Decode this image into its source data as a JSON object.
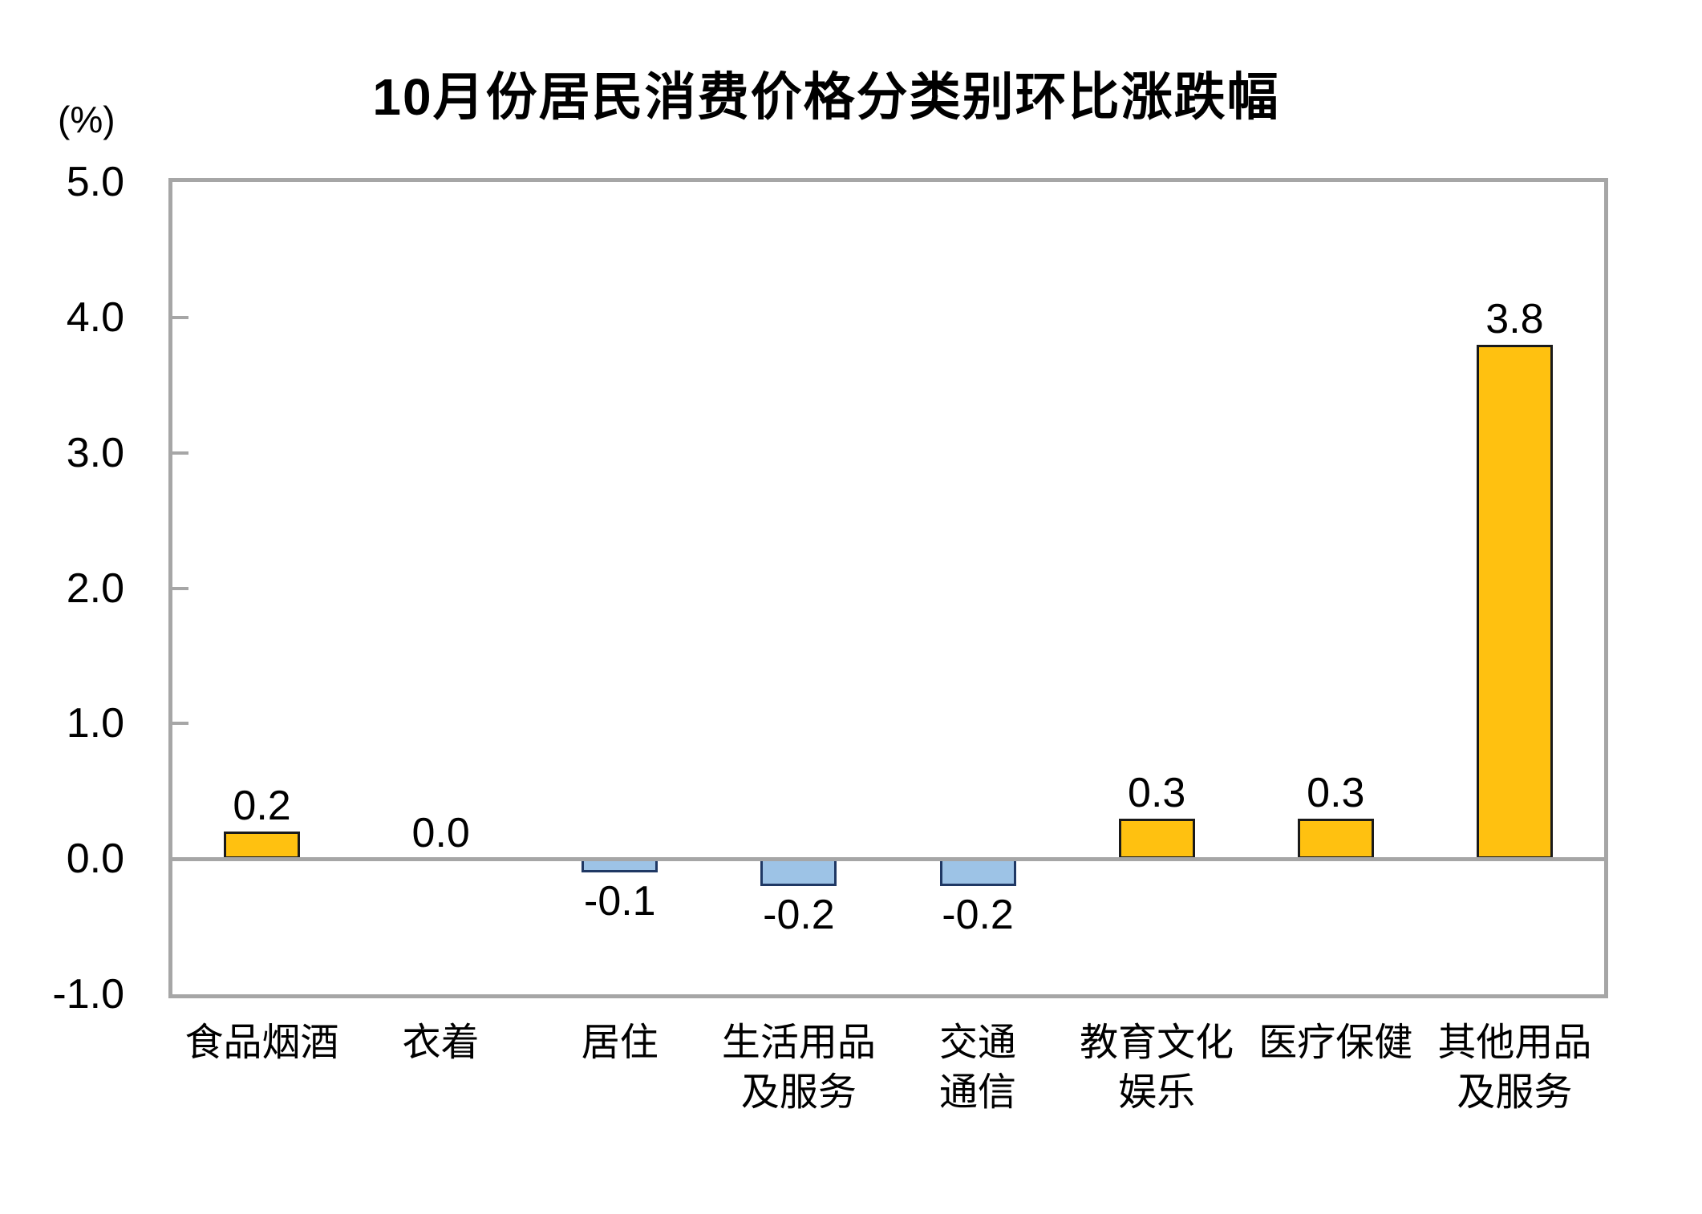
{
  "chart_data": {
    "type": "bar",
    "title": "10月份居民消费价格分类别环比涨跌幅",
    "unit_label": "(%)",
    "categories": [
      "食品烟酒",
      "衣着",
      "居住",
      "生活用品\n及服务",
      "交通\n通信",
      "教育文化\n娱乐",
      "医疗保健",
      "其他用品\n及服务"
    ],
    "values": [
      0.2,
      0.0,
      -0.1,
      -0.2,
      -0.2,
      0.3,
      0.3,
      3.8
    ],
    "value_labels": [
      "0.2",
      "0.0",
      "-0.1",
      "-0.2",
      "-0.2",
      "0.3",
      "0.3",
      "3.8"
    ],
    "ylim": [
      -1.0,
      5.0
    ],
    "ytick_interval": 1.0,
    "ytick_labels": [
      "5.0",
      "4.0",
      "3.0",
      "2.0",
      "1.0",
      "0.0",
      "-1.0"
    ],
    "legend": "none",
    "grid": "zero-baseline-only",
    "colors": {
      "positive_fill": "#FFC110",
      "positive_border": "#1A1A1A",
      "negative_fill": "#9DC3E6",
      "negative_border": "#1F3864",
      "axis": "#A6A6A6",
      "text": "#000000",
      "background": "#FFFFFF"
    }
  }
}
